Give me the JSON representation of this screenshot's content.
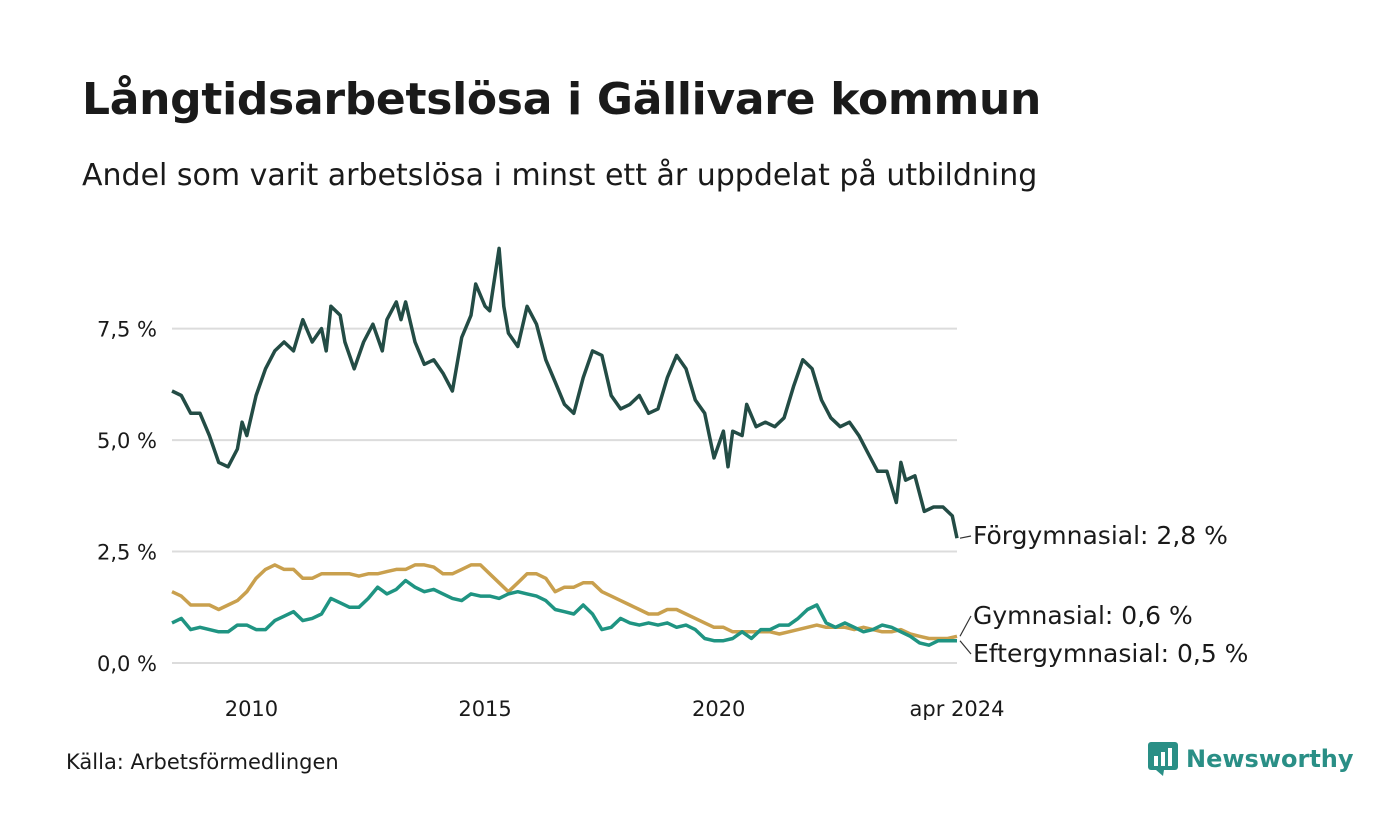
{
  "chart_data": {
    "type": "line",
    "title": "Långtidsarbetslösa i Gällivare kommun",
    "subtitle": "Andel som varit arbetslösa i minst ett år uppdelat på utbildning",
    "source": "Källa: Arbetsförmedlingen",
    "brand": "Newsworthy",
    "x_range": [
      2008.3,
      2024.3
    ],
    "ylim": [
      0,
      9.6
    ],
    "y_ticks": [
      {
        "value": 0,
        "label": "0,0 %"
      },
      {
        "value": 2.5,
        "label": "2,5 %"
      },
      {
        "value": 5,
        "label": "5,0 %"
      },
      {
        "value": 7.5,
        "label": "7,5 %"
      }
    ],
    "x_ticks": [
      {
        "value": 2010,
        "label": "2010"
      },
      {
        "value": 2015,
        "label": "2015"
      },
      {
        "value": 2020,
        "label": "2020"
      },
      {
        "value": 2024.3,
        "label": "apr 2024"
      }
    ],
    "series": [
      {
        "name": "Förgymnasial",
        "label": "Förgymnasial: 2,8 %",
        "color": "#234c45",
        "points": [
          [
            2008.3,
            6.1
          ],
          [
            2008.5,
            6.0
          ],
          [
            2008.7,
            5.6
          ],
          [
            2008.9,
            5.6
          ],
          [
            2009.1,
            5.1
          ],
          [
            2009.3,
            4.5
          ],
          [
            2009.5,
            4.4
          ],
          [
            2009.7,
            4.8
          ],
          [
            2009.8,
            5.4
          ],
          [
            2009.9,
            5.1
          ],
          [
            2010.1,
            6.0
          ],
          [
            2010.3,
            6.6
          ],
          [
            2010.5,
            7.0
          ],
          [
            2010.7,
            7.2
          ],
          [
            2010.9,
            7.0
          ],
          [
            2011.1,
            7.7
          ],
          [
            2011.3,
            7.2
          ],
          [
            2011.5,
            7.5
          ],
          [
            2011.6,
            7.0
          ],
          [
            2011.7,
            8.0
          ],
          [
            2011.9,
            7.8
          ],
          [
            2012.0,
            7.2
          ],
          [
            2012.2,
            6.6
          ],
          [
            2012.4,
            7.2
          ],
          [
            2012.6,
            7.6
          ],
          [
            2012.8,
            7.0
          ],
          [
            2012.9,
            7.7
          ],
          [
            2013.1,
            8.1
          ],
          [
            2013.2,
            7.7
          ],
          [
            2013.3,
            8.1
          ],
          [
            2013.5,
            7.2
          ],
          [
            2013.7,
            6.7
          ],
          [
            2013.9,
            6.8
          ],
          [
            2014.1,
            6.5
          ],
          [
            2014.3,
            6.1
          ],
          [
            2014.5,
            7.3
          ],
          [
            2014.7,
            7.8
          ],
          [
            2014.8,
            8.5
          ],
          [
            2015.0,
            8.0
          ],
          [
            2015.1,
            7.9
          ],
          [
            2015.3,
            9.3
          ],
          [
            2015.4,
            8.0
          ],
          [
            2015.5,
            7.4
          ],
          [
            2015.7,
            7.1
          ],
          [
            2015.9,
            8.0
          ],
          [
            2016.1,
            7.6
          ],
          [
            2016.3,
            6.8
          ],
          [
            2016.5,
            6.3
          ],
          [
            2016.7,
            5.8
          ],
          [
            2016.9,
            5.6
          ],
          [
            2017.1,
            6.4
          ],
          [
            2017.3,
            7.0
          ],
          [
            2017.5,
            6.9
          ],
          [
            2017.7,
            6.0
          ],
          [
            2017.9,
            5.7
          ],
          [
            2018.1,
            5.8
          ],
          [
            2018.3,
            6.0
          ],
          [
            2018.5,
            5.6
          ],
          [
            2018.7,
            5.7
          ],
          [
            2018.9,
            6.4
          ],
          [
            2019.1,
            6.9
          ],
          [
            2019.3,
            6.6
          ],
          [
            2019.5,
            5.9
          ],
          [
            2019.7,
            5.6
          ],
          [
            2019.9,
            4.6
          ],
          [
            2020.1,
            5.2
          ],
          [
            2020.2,
            4.4
          ],
          [
            2020.3,
            5.2
          ],
          [
            2020.5,
            5.1
          ],
          [
            2020.6,
            5.8
          ],
          [
            2020.8,
            5.3
          ],
          [
            2021.0,
            5.4
          ],
          [
            2021.2,
            5.3
          ],
          [
            2021.4,
            5.5
          ],
          [
            2021.6,
            6.2
          ],
          [
            2021.8,
            6.8
          ],
          [
            2022.0,
            6.6
          ],
          [
            2022.2,
            5.9
          ],
          [
            2022.4,
            5.5
          ],
          [
            2022.6,
            5.3
          ],
          [
            2022.8,
            5.4
          ],
          [
            2023.0,
            5.1
          ],
          [
            2023.2,
            4.7
          ],
          [
            2023.4,
            4.3
          ],
          [
            2023.6,
            4.3
          ],
          [
            2023.8,
            3.6
          ],
          [
            2023.9,
            4.5
          ],
          [
            2024.0,
            4.1
          ],
          [
            2024.2,
            4.2
          ],
          [
            2024.4,
            3.4
          ],
          [
            2024.6,
            3.5
          ],
          [
            2024.8,
            3.5
          ],
          [
            2025.0,
            3.3
          ],
          [
            2025.1,
            2.8
          ]
        ]
      },
      {
        "name": "Gymnasial",
        "label": "Gymnasial: 0,6 %",
        "color": "#c9a04e",
        "points": [
          [
            2008.3,
            1.6
          ],
          [
            2008.5,
            1.5
          ],
          [
            2008.7,
            1.3
          ],
          [
            2008.9,
            1.3
          ],
          [
            2009.1,
            1.3
          ],
          [
            2009.3,
            1.2
          ],
          [
            2009.5,
            1.3
          ],
          [
            2009.7,
            1.4
          ],
          [
            2009.9,
            1.6
          ],
          [
            2010.1,
            1.9
          ],
          [
            2010.3,
            2.1
          ],
          [
            2010.5,
            2.2
          ],
          [
            2010.7,
            2.1
          ],
          [
            2010.9,
            2.1
          ],
          [
            2011.1,
            1.9
          ],
          [
            2011.3,
            1.9
          ],
          [
            2011.5,
            2.0
          ],
          [
            2011.7,
            2.0
          ],
          [
            2011.9,
            2.0
          ],
          [
            2012.1,
            2.0
          ],
          [
            2012.3,
            1.95
          ],
          [
            2012.5,
            2.0
          ],
          [
            2012.7,
            2.0
          ],
          [
            2012.9,
            2.05
          ],
          [
            2013.1,
            2.1
          ],
          [
            2013.3,
            2.1
          ],
          [
            2013.5,
            2.2
          ],
          [
            2013.7,
            2.2
          ],
          [
            2013.9,
            2.15
          ],
          [
            2014.1,
            2.0
          ],
          [
            2014.3,
            2.0
          ],
          [
            2014.5,
            2.1
          ],
          [
            2014.7,
            2.2
          ],
          [
            2014.9,
            2.2
          ],
          [
            2015.1,
            2.0
          ],
          [
            2015.3,
            1.8
          ],
          [
            2015.5,
            1.6
          ],
          [
            2015.7,
            1.8
          ],
          [
            2015.9,
            2.0
          ],
          [
            2016.1,
            2.0
          ],
          [
            2016.3,
            1.9
          ],
          [
            2016.5,
            1.6
          ],
          [
            2016.7,
            1.7
          ],
          [
            2016.9,
            1.7
          ],
          [
            2017.1,
            1.8
          ],
          [
            2017.3,
            1.8
          ],
          [
            2017.5,
            1.6
          ],
          [
            2017.7,
            1.5
          ],
          [
            2017.9,
            1.4
          ],
          [
            2018.1,
            1.3
          ],
          [
            2018.3,
            1.2
          ],
          [
            2018.5,
            1.1
          ],
          [
            2018.7,
            1.1
          ],
          [
            2018.9,
            1.2
          ],
          [
            2019.1,
            1.2
          ],
          [
            2019.3,
            1.1
          ],
          [
            2019.5,
            1.0
          ],
          [
            2019.7,
            0.9
          ],
          [
            2019.9,
            0.8
          ],
          [
            2020.1,
            0.8
          ],
          [
            2020.3,
            0.7
          ],
          [
            2020.5,
            0.7
          ],
          [
            2020.7,
            0.7
          ],
          [
            2020.9,
            0.7
          ],
          [
            2021.1,
            0.7
          ],
          [
            2021.3,
            0.65
          ],
          [
            2021.5,
            0.7
          ],
          [
            2021.7,
            0.75
          ],
          [
            2021.9,
            0.8
          ],
          [
            2022.1,
            0.85
          ],
          [
            2022.3,
            0.8
          ],
          [
            2022.5,
            0.8
          ],
          [
            2022.7,
            0.8
          ],
          [
            2022.9,
            0.75
          ],
          [
            2023.1,
            0.8
          ],
          [
            2023.3,
            0.75
          ],
          [
            2023.5,
            0.7
          ],
          [
            2023.7,
            0.7
          ],
          [
            2023.9,
            0.75
          ],
          [
            2024.1,
            0.65
          ],
          [
            2024.3,
            0.6
          ],
          [
            2024.5,
            0.55
          ],
          [
            2024.7,
            0.55
          ],
          [
            2024.9,
            0.55
          ],
          [
            2025.1,
            0.6
          ]
        ]
      },
      {
        "name": "Eftergymnasial",
        "label": "Eftergymnasial: 0,5 %",
        "color": "#1f9482",
        "points": [
          [
            2008.3,
            0.9
          ],
          [
            2008.5,
            1.0
          ],
          [
            2008.7,
            0.75
          ],
          [
            2008.9,
            0.8
          ],
          [
            2009.1,
            0.75
          ],
          [
            2009.3,
            0.7
          ],
          [
            2009.5,
            0.7
          ],
          [
            2009.7,
            0.85
          ],
          [
            2009.9,
            0.85
          ],
          [
            2010.1,
            0.75
          ],
          [
            2010.3,
            0.75
          ],
          [
            2010.5,
            0.95
          ],
          [
            2010.7,
            1.05
          ],
          [
            2010.9,
            1.15
          ],
          [
            2011.1,
            0.95
          ],
          [
            2011.3,
            1.0
          ],
          [
            2011.5,
            1.1
          ],
          [
            2011.7,
            1.45
          ],
          [
            2011.9,
            1.35
          ],
          [
            2012.1,
            1.25
          ],
          [
            2012.3,
            1.25
          ],
          [
            2012.5,
            1.45
          ],
          [
            2012.7,
            1.7
          ],
          [
            2012.9,
            1.55
          ],
          [
            2013.1,
            1.65
          ],
          [
            2013.3,
            1.85
          ],
          [
            2013.5,
            1.7
          ],
          [
            2013.7,
            1.6
          ],
          [
            2013.9,
            1.65
          ],
          [
            2014.1,
            1.55
          ],
          [
            2014.3,
            1.45
          ],
          [
            2014.5,
            1.4
          ],
          [
            2014.7,
            1.55
          ],
          [
            2014.9,
            1.5
          ],
          [
            2015.1,
            1.5
          ],
          [
            2015.3,
            1.45
          ],
          [
            2015.5,
            1.55
          ],
          [
            2015.7,
            1.6
          ],
          [
            2015.9,
            1.55
          ],
          [
            2016.1,
            1.5
          ],
          [
            2016.3,
            1.4
          ],
          [
            2016.5,
            1.2
          ],
          [
            2016.7,
            1.15
          ],
          [
            2016.9,
            1.1
          ],
          [
            2017.1,
            1.3
          ],
          [
            2017.3,
            1.1
          ],
          [
            2017.5,
            0.75
          ],
          [
            2017.7,
            0.8
          ],
          [
            2017.9,
            1.0
          ],
          [
            2018.1,
            0.9
          ],
          [
            2018.3,
            0.85
          ],
          [
            2018.5,
            0.9
          ],
          [
            2018.7,
            0.85
          ],
          [
            2018.9,
            0.9
          ],
          [
            2019.1,
            0.8
          ],
          [
            2019.3,
            0.85
          ],
          [
            2019.5,
            0.75
          ],
          [
            2019.7,
            0.55
          ],
          [
            2019.9,
            0.5
          ],
          [
            2020.1,
            0.5
          ],
          [
            2020.3,
            0.55
          ],
          [
            2020.5,
            0.7
          ],
          [
            2020.7,
            0.55
          ],
          [
            2020.9,
            0.75
          ],
          [
            2021.1,
            0.75
          ],
          [
            2021.3,
            0.85
          ],
          [
            2021.5,
            0.85
          ],
          [
            2021.7,
            1.0
          ],
          [
            2021.9,
            1.2
          ],
          [
            2022.1,
            1.3
          ],
          [
            2022.3,
            0.9
          ],
          [
            2022.5,
            0.8
          ],
          [
            2022.7,
            0.9
          ],
          [
            2022.9,
            0.8
          ],
          [
            2023.1,
            0.7
          ],
          [
            2023.3,
            0.75
          ],
          [
            2023.5,
            0.85
          ],
          [
            2023.7,
            0.8
          ],
          [
            2023.9,
            0.7
          ],
          [
            2024.1,
            0.6
          ],
          [
            2024.3,
            0.45
          ],
          [
            2024.5,
            0.4
          ],
          [
            2024.7,
            0.5
          ],
          [
            2024.9,
            0.5
          ],
          [
            2025.1,
            0.5
          ]
        ]
      }
    ]
  }
}
